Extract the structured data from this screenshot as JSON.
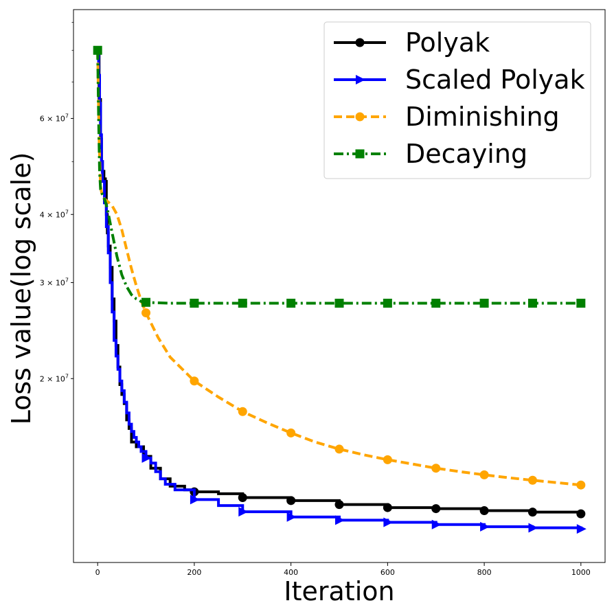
{
  "chart_data": {
    "type": "line",
    "title": "",
    "xlabel": "Iteration",
    "ylabel": "Loss value(log scale)",
    "yscale": "log",
    "xlim": [
      -50,
      1050
    ],
    "ylim": [
      9200000.0,
      95000000.0
    ],
    "x_ticks": [
      {
        "value": 0,
        "label": "0"
      },
      {
        "value": 200,
        "label": "200"
      },
      {
        "value": 400,
        "label": "400"
      },
      {
        "value": 600,
        "label": "600"
      },
      {
        "value": 800,
        "label": "800"
      },
      {
        "value": 1000,
        "label": "1000"
      }
    ],
    "y_ticks": [
      {
        "value": 20000000,
        "base": "2 × 10",
        "exp": "7"
      },
      {
        "value": 30000000,
        "base": "3 × 10",
        "exp": "7"
      },
      {
        "value": 40000000,
        "base": "4 × 10",
        "exp": "7"
      },
      {
        "value": 60000000,
        "base": "6 × 10",
        "exp": "7"
      }
    ],
    "legend_position": "top-right",
    "series": [
      {
        "name": "Polyak",
        "color": "#000000",
        "dash": "solid",
        "marker": "circle",
        "step": true,
        "markers_x": [
          200,
          300,
          400,
          500,
          600,
          700,
          800,
          900,
          1000
        ],
        "x": [
          0,
          3,
          6,
          8,
          10,
          13,
          16,
          18,
          20,
          22,
          26,
          30,
          34,
          38,
          42,
          46,
          50,
          55,
          60,
          65,
          70,
          80,
          95,
          110,
          130,
          150,
          180,
          200,
          250,
          300,
          400,
          500,
          600,
          700,
          800,
          900,
          1000
        ],
        "y": [
          80000000,
          65000000,
          55000000,
          50000000,
          48000000,
          46500000,
          46000000,
          40000000,
          37000000,
          35000000,
          32000000,
          28000000,
          25500000,
          23000000,
          21000000,
          19500000,
          18700000,
          18000000,
          16800000,
          16200000,
          15300000,
          15000000,
          14400000,
          13700000,
          13100000,
          12700000,
          12500000,
          12400000,
          12300000,
          12100000,
          11950000,
          11750000,
          11600000,
          11550000,
          11450000,
          11380000,
          11300000
        ]
      },
      {
        "name": "Scaled Polyak",
        "color": "#0000ff",
        "dash": "solid",
        "marker": "triangle-right",
        "step": true,
        "markers_x": [
          100,
          200,
          300,
          400,
          500,
          600,
          700,
          800,
          900,
          1000
        ],
        "x": [
          0,
          2,
          4,
          6,
          8,
          10,
          14,
          18,
          22,
          26,
          30,
          34,
          38,
          42,
          46,
          50,
          55,
          60,
          65,
          70,
          75,
          80,
          85,
          90,
          100,
          110,
          120,
          130,
          140,
          160,
          200,
          250,
          300,
          400,
          500,
          600,
          700,
          800,
          900,
          1000
        ],
        "y": [
          80000000,
          72000000,
          64000000,
          56000000,
          50000000,
          46000000,
          42000000,
          38000000,
          34000000,
          30000000,
          26500000,
          23500000,
          22000000,
          20800000,
          19800000,
          19000000,
          18100000,
          17300000,
          16500000,
          16000000,
          15600000,
          15300000,
          15000000,
          14700000,
          14300000,
          14000000,
          13500000,
          13100000,
          12800000,
          12500000,
          12000000,
          11700000,
          11400000,
          11150000,
          11000000,
          10900000,
          10800000,
          10700000,
          10650000,
          10600000
        ]
      },
      {
        "name": "Diminishing",
        "color": "#ffa500",
        "dash": "dashed",
        "marker": "circle",
        "step": false,
        "markers_x": [
          100,
          200,
          300,
          400,
          500,
          600,
          700,
          800,
          900,
          1000
        ],
        "x": [
          0,
          3,
          6,
          10,
          20,
          30,
          40,
          50,
          60,
          70,
          80,
          90,
          100,
          125,
          150,
          200,
          250,
          300,
          350,
          400,
          450,
          500,
          550,
          600,
          650,
          700,
          750,
          800,
          850,
          900,
          950,
          1000
        ],
        "y": [
          80000000,
          55000000,
          45000000,
          43000000,
          42300000,
          41500000,
          40000000,
          37500000,
          34500000,
          31800000,
          29600000,
          27800000,
          26400000,
          23800000,
          21900000,
          19800000,
          18500000,
          17400000,
          16600000,
          15900000,
          15300000,
          14850000,
          14500000,
          14200000,
          13950000,
          13700000,
          13500000,
          13320000,
          13160000,
          13020000,
          12890000,
          12760000
        ]
      },
      {
        "name": "Decaying",
        "color": "#008000",
        "dash": "dashdot",
        "marker": "square",
        "step": false,
        "markers_x": [
          0,
          100,
          200,
          300,
          400,
          500,
          600,
          700,
          800,
          900,
          1000
        ],
        "x": [
          0,
          2,
          4,
          6,
          8,
          10,
          15,
          20,
          30,
          40,
          50,
          60,
          70,
          80,
          90,
          100,
          120,
          150,
          200,
          300,
          400,
          500,
          600,
          700,
          800,
          900,
          1000
        ],
        "y": [
          80000000,
          60000000,
          48000000,
          44500000,
          44000000,
          43500000,
          42500000,
          41000000,
          37000000,
          33500000,
          31000000,
          29500000,
          28500000,
          28000000,
          27700000,
          27600000,
          27550000,
          27500000,
          27500000,
          27500000,
          27500000,
          27500000,
          27500000,
          27500000,
          27500000,
          27500000,
          27500000
        ]
      }
    ]
  }
}
